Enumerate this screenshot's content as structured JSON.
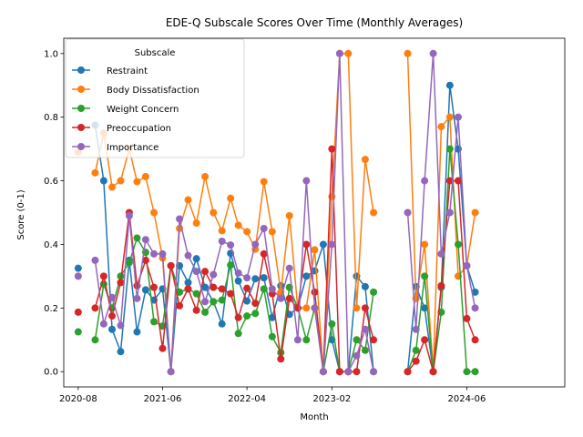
{
  "chart_data": {
    "type": "line",
    "title": "EDE-Q Subscale Scores Over Time (Monthly Averages)",
    "xlabel": "Month",
    "ylabel": "Score (0-1)",
    "ylim": [
      -0.048,
      1.048
    ],
    "xlim": [
      "2020-06-10",
      "2025-05-20"
    ],
    "yticks": [
      "0.0",
      "0.2",
      "0.4",
      "0.6",
      "0.8",
      "1.0"
    ],
    "xticks": [
      {
        "label": "2020-08",
        "date": "2020-08-01"
      },
      {
        "label": "2021-06",
        "date": "2021-06-01"
      },
      {
        "label": "2022-04",
        "date": "2022-04-01"
      },
      {
        "label": "2023-02",
        "date": "2023-02-01"
      },
      {
        "label": "2024-06",
        "date": "2024-06-01"
      }
    ],
    "grid": false,
    "legend": {
      "title": "Subscale",
      "placement": "upper-left"
    },
    "x": [
      "2020-08",
      "2020-09",
      "2020-10",
      "2020-11",
      "2020-12",
      "2021-01",
      "2021-02",
      "2021-03",
      "2021-04",
      "2021-05",
      "2021-06",
      "2021-07",
      "2021-08",
      "2021-09",
      "2021-10",
      "2021-11",
      "2021-12",
      "2022-01",
      "2022-02",
      "2022-03",
      "2022-04",
      "2022-05",
      "2022-06",
      "2022-07",
      "2022-08",
      "2022-09",
      "2022-10",
      "2022-11",
      "2022-12",
      "2023-01",
      "2023-02",
      "2023-03",
      "2023-04",
      "2023-05",
      "2023-06",
      "2023-07",
      "2023-08",
      "2023-09",
      "2023-10",
      "2023-11",
      "2023-12",
      "2024-01",
      "2024-02",
      "2024-03",
      "2024-04",
      "2024-05",
      "2024-06",
      "2024-07",
      "2024-08",
      "2024-09",
      "2024-10",
      "2024-11",
      "2024-12",
      "2025-01",
      "2025-02",
      "2025-03"
    ],
    "series": [
      {
        "name": "Restraint",
        "color": "#1f77b4",
        "values": [
          0.325,
          null,
          0.775,
          0.6,
          0.133,
          0.063,
          0.35,
          0.125,
          0.257,
          0.225,
          0.26,
          0.0,
          0.333,
          0.28,
          0.355,
          0.265,
          0.22,
          0.15,
          0.372,
          0.285,
          0.222,
          0.292,
          0.295,
          0.17,
          0.27,
          0.18,
          0.2,
          0.3,
          0.317,
          0.4,
          0.1,
          0.0,
          0.0,
          0.3,
          0.267,
          0.0,
          null,
          null,
          null,
          0.0,
          0.267,
          0.2,
          0.0,
          0.265,
          0.9,
          0.7,
          0.333,
          0.25,
          null,
          null,
          null,
          null,
          null,
          null,
          null,
          null
        ]
      },
      {
        "name": "Body Dissatisfaction",
        "color": "#ff7f0e",
        "values": [
          0.69,
          null,
          0.625,
          0.75,
          0.58,
          0.6,
          0.7,
          0.597,
          0.613,
          0.5,
          0.357,
          0.0,
          0.45,
          0.54,
          0.467,
          0.613,
          0.5,
          0.443,
          0.545,
          0.46,
          0.44,
          0.385,
          0.597,
          0.44,
          0.25,
          0.49,
          0.2,
          0.2,
          0.383,
          0.0,
          0.55,
          1.0,
          1.0,
          0.2,
          0.667,
          0.5,
          null,
          null,
          null,
          1.0,
          0.23,
          0.4,
          0.0,
          0.77,
          0.8,
          0.3,
          0.333,
          0.5,
          null,
          null,
          null,
          null,
          null,
          null,
          null,
          null
        ]
      },
      {
        "name": "Weight Concern",
        "color": "#2ca02c",
        "values": [
          0.125,
          null,
          0.1,
          0.275,
          0.2,
          0.3,
          0.343,
          0.42,
          0.375,
          0.157,
          0.143,
          0.333,
          0.25,
          0.26,
          0.245,
          0.187,
          0.22,
          0.225,
          0.335,
          0.12,
          0.175,
          0.183,
          0.26,
          0.11,
          0.06,
          0.265,
          0.2,
          0.1,
          0.2,
          0.0,
          0.15,
          0.0,
          0.0,
          0.1,
          0.067,
          0.25,
          null,
          null,
          null,
          0.0,
          0.067,
          0.3,
          0.0,
          0.187,
          0.7,
          0.4,
          0.0,
          0.0,
          null,
          null,
          null,
          null,
          null,
          null,
          null,
          null
        ]
      },
      {
        "name": "Preoccupation",
        "color": "#d62728",
        "values": [
          0.187,
          null,
          0.2,
          0.3,
          0.175,
          0.28,
          0.5,
          0.27,
          0.35,
          0.265,
          0.073,
          0.333,
          0.207,
          0.26,
          0.193,
          0.315,
          0.265,
          0.26,
          0.245,
          0.17,
          0.262,
          0.215,
          0.37,
          0.245,
          0.04,
          0.23,
          0.2,
          0.4,
          0.25,
          0.0,
          0.7,
          0.0,
          0.0,
          0.0,
          0.2,
          0.1,
          null,
          null,
          null,
          0.0,
          0.033,
          0.1,
          0.0,
          0.27,
          0.6,
          0.6,
          0.167,
          0.1,
          null,
          null,
          null,
          null,
          null,
          null,
          null,
          null
        ]
      },
      {
        "name": "Importance",
        "color": "#9467bd",
        "values": [
          0.3,
          null,
          0.35,
          0.15,
          0.233,
          0.145,
          0.49,
          0.23,
          0.415,
          0.37,
          0.37,
          0.0,
          0.48,
          0.365,
          0.315,
          0.22,
          0.305,
          0.41,
          0.398,
          0.31,
          0.295,
          0.4,
          0.45,
          0.26,
          0.23,
          0.325,
          0.1,
          0.6,
          0.2,
          0.0,
          0.4,
          1.0,
          0.0,
          0.05,
          0.133,
          0.0,
          null,
          null,
          null,
          0.5,
          0.133,
          0.6,
          1.0,
          0.37,
          0.5,
          0.8,
          0.333,
          0.2,
          null,
          null,
          null,
          null,
          null,
          null,
          null,
          null
        ]
      }
    ]
  }
}
